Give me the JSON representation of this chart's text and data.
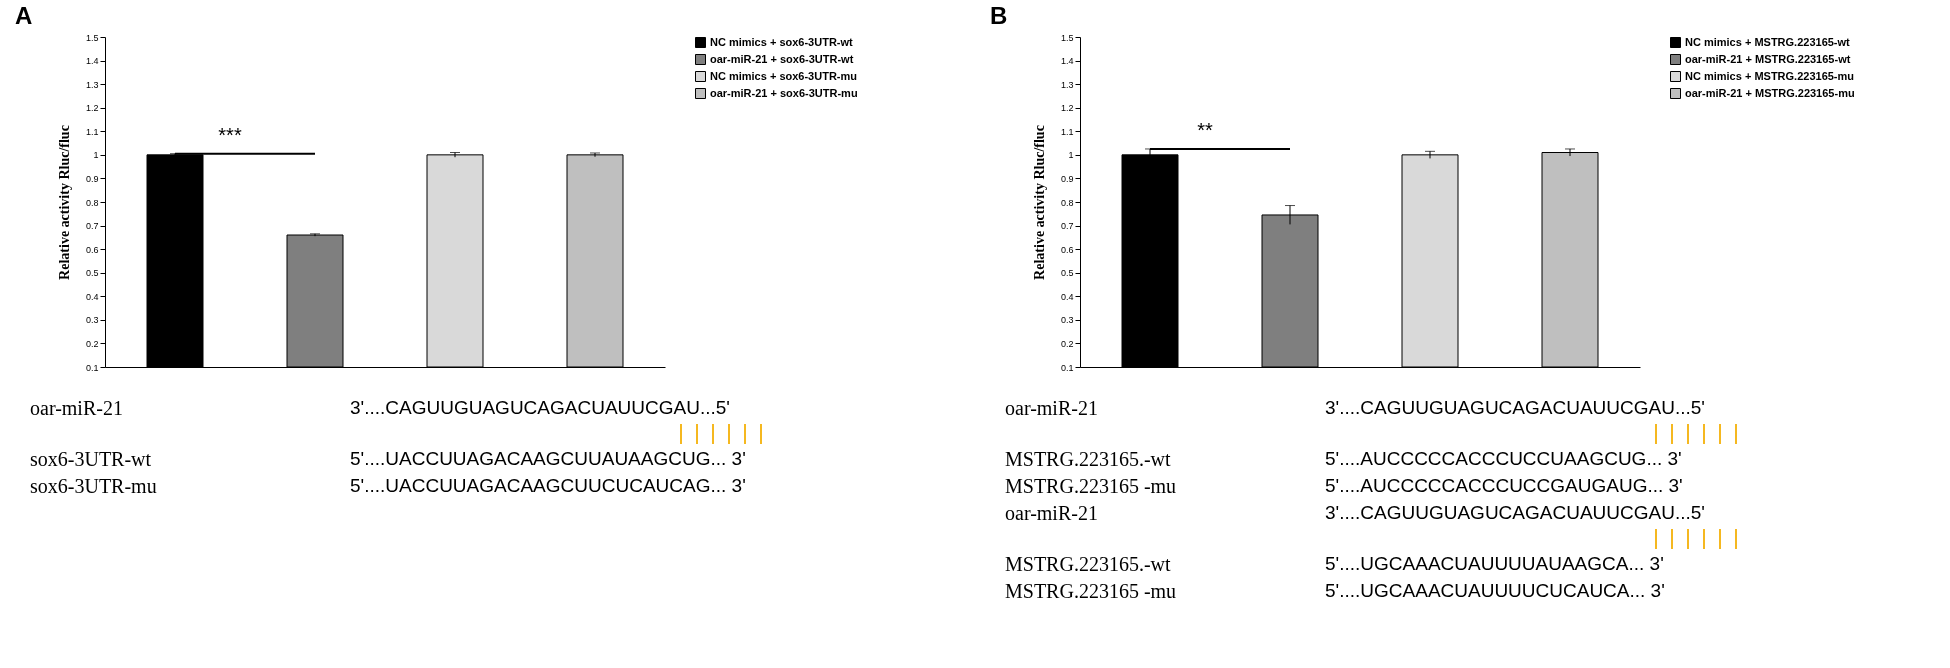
{
  "chart_data": [
    {
      "type": "bar",
      "title": "A",
      "ylabel": "Relative activity Rluc/fluc",
      "categories": [
        null,
        null,
        null,
        null
      ],
      "ylim": [
        0.1,
        1.5
      ],
      "yticks": [
        0.1,
        0.2,
        0.3,
        0.4,
        0.5,
        0.6,
        0.7,
        0.8,
        0.9,
        1,
        1.1,
        1.2,
        1.3,
        1.4,
        1.5
      ],
      "grid": false,
      "legend": "right",
      "series": [
        {
          "name": "NC mimics + sox6-3UTR-wt",
          "color": "#000000",
          "values": [
            1.0,
            null,
            null,
            null
          ],
          "errors": [
            0.005,
            null,
            null,
            null
          ]
        },
        {
          "name": "oar-miR-21 + sox6-3UTR-wt",
          "color": "#7f7f7f",
          "values": [
            null,
            0.66,
            null,
            null
          ],
          "errors": [
            null,
            0.005,
            null,
            null
          ]
        },
        {
          "name": "NC mimics + sox6-3UTR-mu",
          "color": "#d9d9d9",
          "values": [
            null,
            null,
            1.0,
            null
          ],
          "errors": [
            null,
            null,
            0.01,
            null
          ]
        },
        {
          "name": "oar-miR-21 + sox6-3UTR-mu",
          "color": "#bfbfbf",
          "values": [
            null,
            null,
            null,
            1.0
          ],
          "errors": [
            null,
            null,
            null,
            0.008
          ]
        }
      ],
      "annotations": [
        "***",
        "oar-miR-21",
        "3'....CAGUUGUAGUCAGACUAUUCGAU...5'",
        "sox6-3UTR-wt",
        "5'....UACCUUAGACAAGCUUAUAAGCUG... 3'",
        "sox6-3UTR-mu",
        "5'....UACCUUAGACAAGCUUCUCAUCAG... 3'"
      ]
    },
    {
      "type": "bar",
      "title": "B",
      "ylabel": "Relative activity Rluc/fluc",
      "categories": [
        null,
        null,
        null,
        null
      ],
      "ylim": [
        0.1,
        1.5
      ],
      "yticks": [
        0.1,
        0.2,
        0.3,
        0.4,
        0.5,
        0.6,
        0.7,
        0.8,
        0.9,
        1,
        1.1,
        1.2,
        1.3,
        1.4,
        1.5
      ],
      "grid": false,
      "legend": "right",
      "series": [
        {
          "name": "NC mimics + MSTRG.223165-wt",
          "color": "#000000",
          "values": [
            1.0,
            null,
            null,
            null
          ],
          "errors": [
            0.025,
            null,
            null,
            null
          ]
        },
        {
          "name": "oar-miR-21 + MSTRG.223165-wt",
          "color": "#7f7f7f",
          "values": [
            null,
            0.745,
            null,
            null
          ],
          "errors": [
            null,
            0.04,
            null,
            null
          ]
        },
        {
          "name": "NC mimics + MSTRG.223165-mu",
          "color": "#d9d9d9",
          "values": [
            null,
            null,
            1.0,
            null
          ],
          "errors": [
            null,
            null,
            0.015,
            null
          ]
        },
        {
          "name": "oar-miR-21 + MSTRG.223165-mu",
          "color": "#bfbfbf",
          "values": [
            null,
            null,
            null,
            1.01
          ],
          "errors": [
            null,
            null,
            null,
            0.015
          ]
        }
      ],
      "annotations": [
        "**",
        "oar-miR-21",
        "3'....CAGUUGUAGUCAGACUAUUCGAU...5'",
        "MSTRG.223165.-wt",
        "5'....AUCCCCCACCCUCCUAAGCUG... 3'",
        "MSTRG.223165 -mu",
        "5'....AUCCCCCACCCUCCGAUGAUG... 3'",
        "oar-miR-21",
        "3'....CAGUUGUAGUCAGACUAUUCGAU...5'",
        "MSTRG.223165.-wt",
        "5'....UGCAAACUAUUUUAUAAGCA... 3'",
        "MSTRG.223165 -mu",
        "5'....UGCAAACUAUUUUCUCAUCA... 3'"
      ]
    }
  ]
}
